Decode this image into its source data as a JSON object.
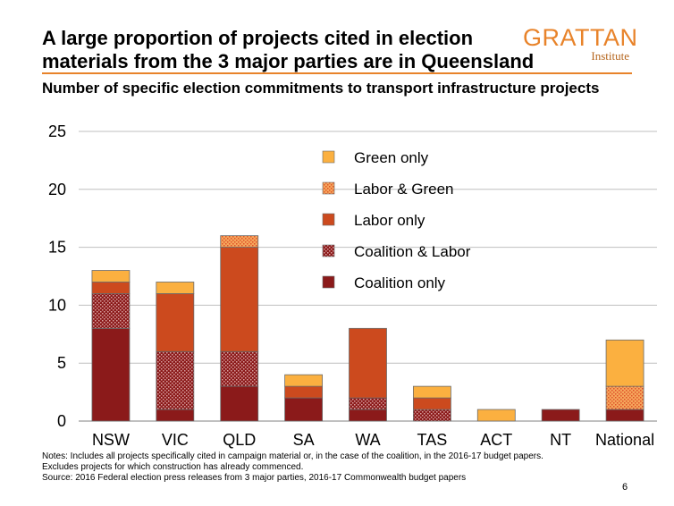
{
  "header": {
    "title": "A large proportion of projects cited in election materials from the 3 major parties are in Queensland",
    "subtitle": "Number of specific election commitments to transport infrastructure projects",
    "logo_main": "GRATTAN",
    "logo_sub": "Institute"
  },
  "footer": {
    "notes_line1": "Notes: Includes all projects specifically cited in campaign material or, in the case of the coalition, in the 2016-17  budget papers.",
    "notes_line2": "Excludes projects for which construction has already commenced.",
    "source": "Source: 2016 Federal election press releases from 3 major parties, 2016-17 Commonwealth budget papers",
    "page_number": "6"
  },
  "colors": {
    "coalition_only": "#8b1a1a",
    "coalition_labor": "#8b1a1a",
    "labor_only": "#cc4a1e",
    "labor_green": "#f5a65b",
    "green_only": "#fbb040"
  },
  "chart_data": {
    "type": "bar",
    "stacked": true,
    "categories": [
      "NSW",
      "VIC",
      "QLD",
      "SA",
      "WA",
      "TAS",
      "ACT",
      "NT",
      "National"
    ],
    "series": [
      {
        "name": "Coalition only",
        "values": [
          8,
          1,
          3,
          2,
          1,
          0,
          0,
          1,
          1
        ],
        "color": "#8b1a1a",
        "pattern": "solid"
      },
      {
        "name": "Coalition & Labor",
        "values": [
          3,
          5,
          3,
          0,
          1,
          1,
          0,
          0,
          0
        ],
        "color": "#8b1a1a",
        "pattern": "dotted"
      },
      {
        "name": "Labor only",
        "values": [
          1,
          5,
          9,
          1,
          6,
          1,
          0,
          0,
          0
        ],
        "color": "#cc4a1e",
        "pattern": "solid"
      },
      {
        "name": "Labor & Green",
        "values": [
          0,
          0,
          1,
          0,
          0,
          0,
          0,
          0,
          2
        ],
        "color": "#f5a65b",
        "pattern": "dotted"
      },
      {
        "name": "Green only",
        "values": [
          1,
          1,
          0,
          1,
          0,
          1,
          1,
          0,
          4
        ],
        "color": "#fbb040",
        "pattern": "solid"
      }
    ],
    "legend_order": [
      "Green only",
      "Labor & Green",
      "Labor only",
      "Coalition & Labor",
      "Coalition only"
    ],
    "legend_position": "top-right",
    "ylim": [
      0,
      25
    ],
    "yticks": [
      0,
      5,
      10,
      15,
      20,
      25
    ],
    "grid": true,
    "xlabel": "",
    "ylabel": ""
  }
}
